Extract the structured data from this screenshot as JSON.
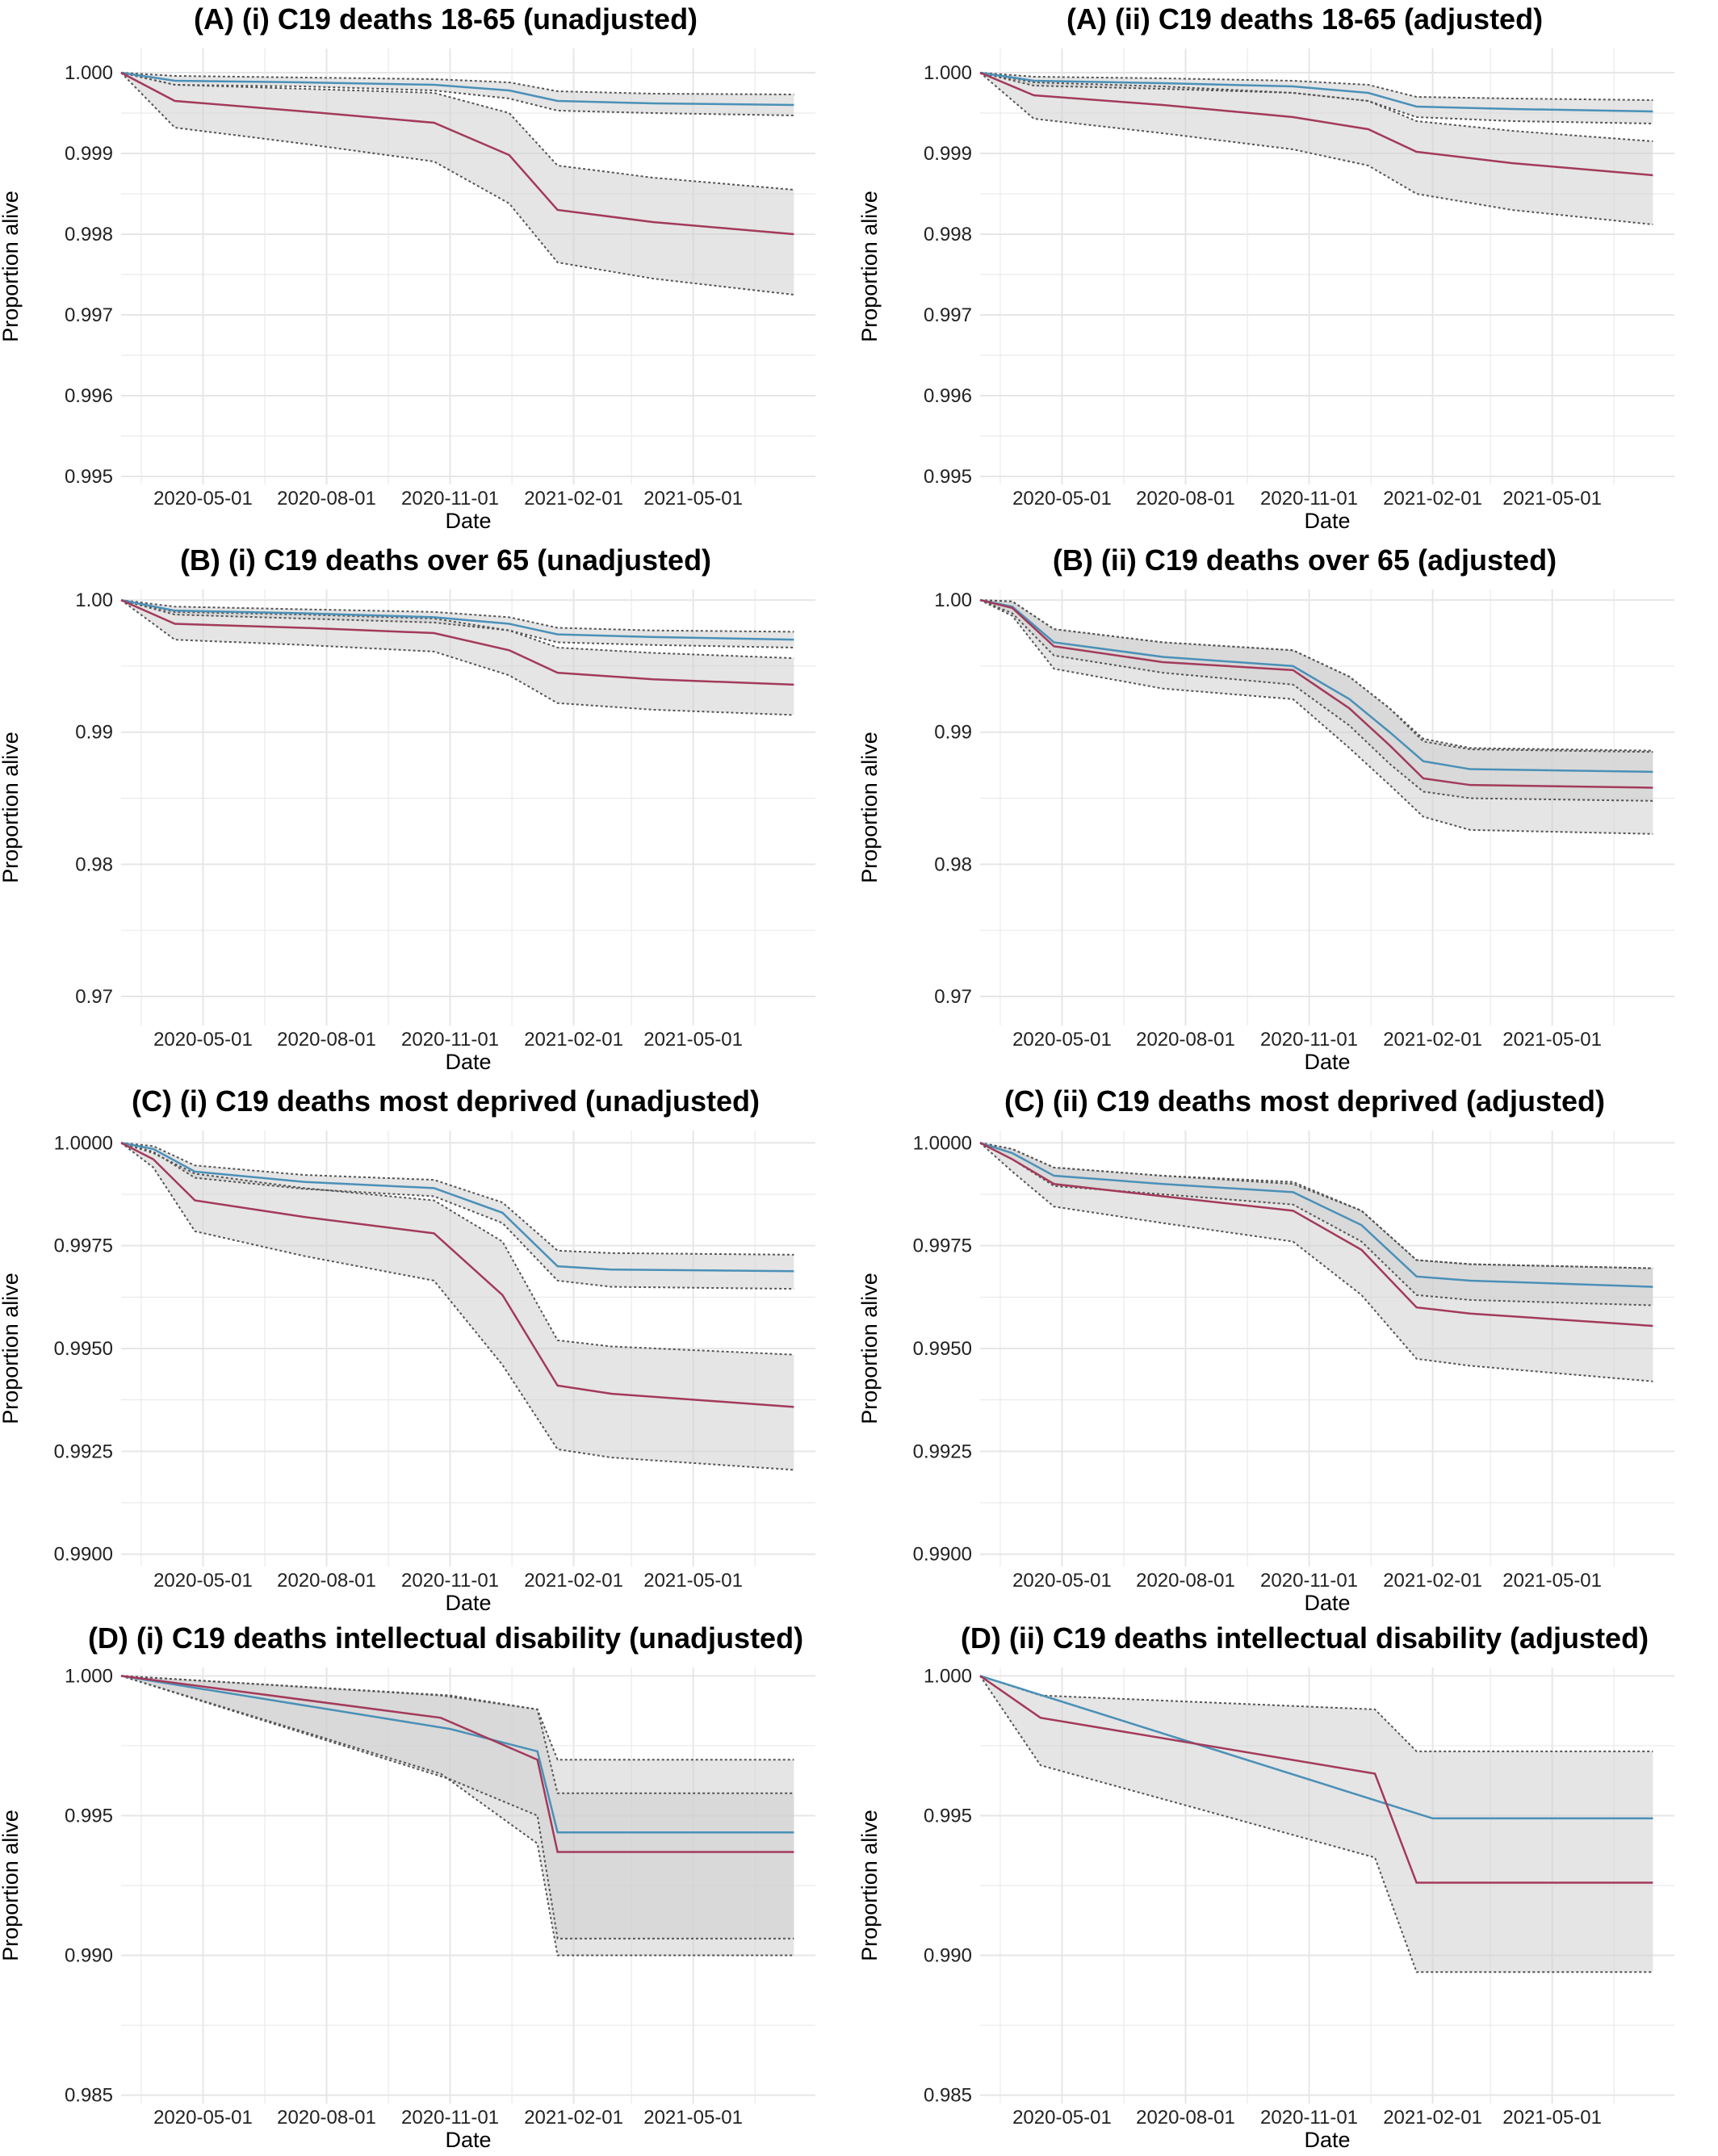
{
  "figure": {
    "panels_count": 8,
    "colors": {
      "series_blue": "#4a90b8",
      "series_red": "#a33a5a",
      "ci_fill": "#cfcfcf",
      "grid": "#e6e6e6",
      "ci_border": "#555555"
    }
  },
  "chart_data": [
    {
      "id": "A-i",
      "type": "line",
      "title": "(A)  (i) C19 deaths 18-65 (unadjusted)",
      "xlabel": "Date",
      "ylabel": "Proportion alive",
      "xlim": [
        "2020-03-01",
        "2021-07-31"
      ],
      "ylim": [
        0.9949,
        1.0003
      ],
      "xticks": [
        "2020-05-01",
        "2020-08-01",
        "2020-11-01",
        "2021-02-01",
        "2021-05-01"
      ],
      "yticks": [
        0.995,
        0.996,
        0.997,
        0.998,
        0.999,
        1.0
      ],
      "ytick_labels": [
        "0.995",
        "0.996",
        "0.997",
        "0.998",
        "0.999",
        "1.000"
      ],
      "grid": true,
      "series": [
        {
          "color": "blue",
          "x": [
            "2020-03-01",
            "2020-04-10",
            "2020-07-15",
            "2020-10-20",
            "2020-12-15",
            "2021-01-20",
            "2021-04-01",
            "2021-07-15"
          ],
          "values": [
            1.0,
            0.9999,
            0.99988,
            0.99985,
            0.99978,
            0.99965,
            0.99962,
            0.9996
          ],
          "lower": [
            1.0,
            0.99985,
            0.99983,
            0.99978,
            0.99968,
            0.99953,
            0.9995,
            0.99947
          ],
          "upper": [
            1.0,
            0.99996,
            0.99994,
            0.99992,
            0.99988,
            0.99977,
            0.99974,
            0.99973
          ]
        },
        {
          "color": "red",
          "x": [
            "2020-03-01",
            "2020-04-10",
            "2020-07-15",
            "2020-10-20",
            "2020-12-15",
            "2021-01-20",
            "2021-04-01",
            "2021-07-15"
          ],
          "values": [
            1.0,
            0.99965,
            0.99952,
            0.99938,
            0.99898,
            0.9983,
            0.99815,
            0.998
          ],
          "lower": [
            1.0,
            0.99932,
            0.99912,
            0.9989,
            0.99838,
            0.99765,
            0.99745,
            0.99725
          ],
          "upper": [
            1.0,
            0.99985,
            0.9998,
            0.99975,
            0.9995,
            0.99885,
            0.9987,
            0.99855
          ]
        }
      ]
    },
    {
      "id": "A-ii",
      "type": "line",
      "title": "(A)  (ii) C19 deaths 18-65 (adjusted)",
      "xlabel": "Date",
      "ylabel": "Proportion alive",
      "xlim": [
        "2020-03-01",
        "2021-07-31"
      ],
      "ylim": [
        0.9949,
        1.0003
      ],
      "xticks": [
        "2020-05-01",
        "2020-08-01",
        "2020-11-01",
        "2021-02-01",
        "2021-05-01"
      ],
      "yticks": [
        0.995,
        0.996,
        0.997,
        0.998,
        0.999,
        1.0
      ],
      "ytick_labels": [
        "0.995",
        "0.996",
        "0.997",
        "0.998",
        "0.999",
        "1.000"
      ],
      "grid": true,
      "series": [
        {
          "color": "blue",
          "x": [
            "2020-03-01",
            "2020-04-10",
            "2020-07-15",
            "2020-10-20",
            "2020-12-15",
            "2021-01-20",
            "2021-04-01",
            "2021-07-15"
          ],
          "values": [
            1.0,
            0.9999,
            0.99987,
            0.99983,
            0.99975,
            0.99958,
            0.99955,
            0.99952
          ],
          "lower": [
            1.0,
            0.99984,
            0.9998,
            0.99975,
            0.99965,
            0.99945,
            0.9994,
            0.99937
          ],
          "upper": [
            1.0,
            0.99995,
            0.99993,
            0.9999,
            0.99985,
            0.9997,
            0.99968,
            0.99966
          ]
        },
        {
          "color": "red",
          "x": [
            "2020-03-01",
            "2020-04-10",
            "2020-07-15",
            "2020-10-20",
            "2020-12-15",
            "2021-01-20",
            "2021-04-01",
            "2021-07-15"
          ],
          "values": [
            1.0,
            0.99972,
            0.9996,
            0.99945,
            0.9993,
            0.99902,
            0.99888,
            0.99873
          ],
          "lower": [
            1.0,
            0.99943,
            0.99925,
            0.99905,
            0.99885,
            0.9985,
            0.9983,
            0.99812
          ],
          "upper": [
            1.0,
            0.99988,
            0.99983,
            0.99975,
            0.99965,
            0.9994,
            0.99928,
            0.99915
          ]
        }
      ]
    },
    {
      "id": "B-i",
      "type": "line",
      "title": "(B)  (i) C19 deaths over 65 (unadjusted)",
      "xlabel": "Date",
      "ylabel": "Proportion alive",
      "xlim": [
        "2020-03-01",
        "2021-07-31"
      ],
      "ylim": [
        0.9678,
        1.0008
      ],
      "xticks": [
        "2020-05-01",
        "2020-08-01",
        "2020-11-01",
        "2021-02-01",
        "2021-05-01"
      ],
      "yticks": [
        0.97,
        0.98,
        0.99,
        1.0
      ],
      "ytick_labels": [
        "0.97",
        "0.98",
        "0.99",
        "1.00"
      ],
      "grid": true,
      "series": [
        {
          "color": "blue",
          "x": [
            "2020-03-01",
            "2020-04-10",
            "2020-07-15",
            "2020-10-20",
            "2020-12-15",
            "2021-01-20",
            "2021-04-01",
            "2021-07-15"
          ],
          "values": [
            1.0,
            0.9992,
            0.999,
            0.9987,
            0.9982,
            0.9974,
            0.9972,
            0.997
          ],
          "lower": [
            1.0,
            0.9989,
            0.9986,
            0.9983,
            0.9977,
            0.9968,
            0.9966,
            0.9964
          ],
          "upper": [
            1.0,
            0.9995,
            0.9993,
            0.9991,
            0.9987,
            0.9979,
            0.9977,
            0.9976
          ]
        },
        {
          "color": "red",
          "x": [
            "2020-03-01",
            "2020-04-10",
            "2020-07-15",
            "2020-10-20",
            "2020-12-15",
            "2021-01-20",
            "2021-04-01",
            "2021-07-15"
          ],
          "values": [
            1.0,
            0.9982,
            0.9979,
            0.9975,
            0.9962,
            0.9945,
            0.994,
            0.9936
          ],
          "lower": [
            1.0,
            0.997,
            0.9966,
            0.9961,
            0.9943,
            0.9922,
            0.9917,
            0.9913
          ],
          "upper": [
            1.0,
            0.9991,
            0.9989,
            0.9986,
            0.9977,
            0.9964,
            0.996,
            0.9956
          ]
        }
      ]
    },
    {
      "id": "B-ii",
      "type": "line",
      "title": "(B)  (ii) C19 deaths over 65 (adjusted)",
      "xlabel": "Date",
      "ylabel": "Proportion alive",
      "xlim": [
        "2020-03-01",
        "2021-07-31"
      ],
      "ylim": [
        0.9678,
        1.0008
      ],
      "xticks": [
        "2020-05-01",
        "2020-08-01",
        "2020-11-01",
        "2021-02-01",
        "2021-05-01"
      ],
      "yticks": [
        0.97,
        0.98,
        0.99,
        1.0
      ],
      "ytick_labels": [
        "0.97",
        "0.98",
        "0.99",
        "1.00"
      ],
      "grid": true,
      "series": [
        {
          "color": "blue",
          "x": [
            "2020-03-01",
            "2020-03-25",
            "2020-04-25",
            "2020-07-15",
            "2020-10-20",
            "2020-12-01",
            "2020-12-31",
            "2021-01-25",
            "2021-03-01",
            "2021-07-15"
          ],
          "values": [
            1.0,
            0.9995,
            0.9968,
            0.9957,
            0.995,
            0.9925,
            0.99,
            0.9878,
            0.9872,
            0.987
          ],
          "lower": [
            1.0,
            0.999,
            0.9958,
            0.9945,
            0.9936,
            0.9905,
            0.9876,
            0.9855,
            0.985,
            0.9848
          ],
          "upper": [
            1.0,
            0.9999,
            0.9978,
            0.9968,
            0.9962,
            0.9942,
            0.9918,
            0.9895,
            0.9888,
            0.9886
          ]
        },
        {
          "color": "red",
          "x": [
            "2020-03-01",
            "2020-03-25",
            "2020-04-25",
            "2020-07-15",
            "2020-10-20",
            "2020-12-01",
            "2020-12-31",
            "2021-01-25",
            "2021-03-01",
            "2021-07-15"
          ],
          "values": [
            1.0,
            0.9994,
            0.9965,
            0.9953,
            0.9947,
            0.9918,
            0.989,
            0.9865,
            0.986,
            0.9858
          ],
          "lower": [
            1.0,
            0.9988,
            0.9948,
            0.9933,
            0.9925,
            0.9888,
            0.986,
            0.9836,
            0.9826,
            0.9823
          ],
          "upper": [
            1.0,
            0.9999,
            0.9978,
            0.9968,
            0.9962,
            0.9942,
            0.9918,
            0.9893,
            0.9887,
            0.9885
          ]
        }
      ]
    },
    {
      "id": "C-i",
      "type": "line",
      "title": "(C)  (i) C19 deaths most deprived (unadjusted)",
      "xlabel": "Date",
      "ylabel": "Proportion alive",
      "xlim": [
        "2020-03-01",
        "2021-07-31"
      ],
      "ylim": [
        0.9897,
        1.0003
      ],
      "xticks": [
        "2020-05-01",
        "2020-08-01",
        "2020-11-01",
        "2021-02-01",
        "2021-05-01"
      ],
      "yticks": [
        0.99,
        0.9925,
        0.995,
        0.9975,
        1.0
      ],
      "ytick_labels": [
        "0.9900",
        "0.9925",
        "0.9950",
        "0.9975",
        "1.0000"
      ],
      "grid": true,
      "series": [
        {
          "color": "blue",
          "x": [
            "2020-03-01",
            "2020-03-25",
            "2020-04-25",
            "2020-07-15",
            "2020-10-20",
            "2020-12-10",
            "2021-01-20",
            "2021-03-01",
            "2021-07-15"
          ],
          "values": [
            1.0,
            0.99985,
            0.9993,
            0.99905,
            0.9989,
            0.9983,
            0.997,
            0.99692,
            0.99688
          ],
          "lower": [
            1.0,
            0.99978,
            0.99915,
            0.99888,
            0.9987,
            0.99805,
            0.99665,
            0.9965,
            0.99645
          ],
          "upper": [
            1.0,
            0.99992,
            0.99945,
            0.99922,
            0.9991,
            0.99855,
            0.99738,
            0.99732,
            0.99728
          ]
        },
        {
          "color": "red",
          "x": [
            "2020-03-01",
            "2020-03-25",
            "2020-04-25",
            "2020-07-15",
            "2020-10-20",
            "2020-12-10",
            "2021-01-20",
            "2021-03-01",
            "2021-07-15"
          ],
          "values": [
            1.0,
            0.9996,
            0.9986,
            0.9982,
            0.9978,
            0.9963,
            0.9941,
            0.9939,
            0.99358
          ],
          "lower": [
            1.0,
            0.9994,
            0.99785,
            0.99725,
            0.99665,
            0.9946,
            0.99255,
            0.99235,
            0.99205
          ],
          "upper": [
            1.0,
            0.99975,
            0.99925,
            0.9989,
            0.9986,
            0.9976,
            0.9952,
            0.99505,
            0.99485
          ]
        }
      ]
    },
    {
      "id": "C-ii",
      "type": "line",
      "title": "(C)  (ii)        C19 deaths most deprived (adjusted)",
      "xlabel": "Date",
      "ylabel": "Proportion alive",
      "xlim": [
        "2020-03-01",
        "2021-07-31"
      ],
      "ylim": [
        0.9897,
        1.0003
      ],
      "xticks": [
        "2020-05-01",
        "2020-08-01",
        "2020-11-01",
        "2021-02-01",
        "2021-05-01"
      ],
      "yticks": [
        0.99,
        0.9925,
        0.995,
        0.9975,
        1.0
      ],
      "ytick_labels": [
        "0.9900",
        "0.9925",
        "0.9950",
        "0.9975",
        "1.0000"
      ],
      "grid": true,
      "series": [
        {
          "color": "blue",
          "x": [
            "2020-03-01",
            "2020-03-25",
            "2020-04-25",
            "2020-07-15",
            "2020-10-20",
            "2020-12-10",
            "2021-01-20",
            "2021-03-01",
            "2021-07-15"
          ],
          "values": [
            1.0,
            0.99975,
            0.9992,
            0.999,
            0.9988,
            0.998,
            0.99675,
            0.99665,
            0.9965
          ],
          "lower": [
            1.0,
            0.9996,
            0.99895,
            0.99875,
            0.9985,
            0.9976,
            0.9963,
            0.99618,
            0.99605
          ],
          "upper": [
            1.0,
            0.99985,
            0.9994,
            0.9992,
            0.99905,
            0.99835,
            0.99715,
            0.99705,
            0.99695
          ]
        },
        {
          "color": "red",
          "x": [
            "2020-03-01",
            "2020-03-25",
            "2020-04-25",
            "2020-07-15",
            "2020-10-20",
            "2020-12-10",
            "2021-01-20",
            "2021-03-01",
            "2021-07-15"
          ],
          "values": [
            1.0,
            0.9996,
            0.999,
            0.9987,
            0.99835,
            0.9974,
            0.996,
            0.99585,
            0.99555
          ],
          "lower": [
            1.0,
            0.9993,
            0.99845,
            0.99805,
            0.9976,
            0.9963,
            0.99475,
            0.99458,
            0.9942
          ],
          "upper": [
            1.0,
            0.99985,
            0.9994,
            0.9992,
            0.999,
            0.99835,
            0.99715,
            0.99705,
            0.99695
          ]
        }
      ]
    },
    {
      "id": "D-i",
      "type": "line",
      "title": "(D)  (i) C19 deaths intellectual disability (unadjusted)",
      "xlabel": "Date",
      "ylabel": "Proportion alive",
      "xlim": [
        "2020-03-01",
        "2021-07-31"
      ],
      "ylim": [
        0.9847,
        1.0003
      ],
      "xticks": [
        "2020-05-01",
        "2020-08-01",
        "2020-11-01",
        "2021-02-01",
        "2021-05-01"
      ],
      "yticks": [
        0.985,
        0.99,
        0.995,
        1.0
      ],
      "ytick_labels": [
        "0.985",
        "0.990",
        "0.995",
        "1.000"
      ],
      "grid": true,
      "series": [
        {
          "color": "blue",
          "x": [
            "2020-03-01",
            "2020-11-01",
            "2021-01-05",
            "2021-01-20",
            "2021-07-15"
          ],
          "values": [
            1.0,
            0.9981,
            0.9973,
            0.9944,
            0.9944
          ],
          "lower": [
            1.0,
            0.9963,
            0.995,
            0.9906,
            0.9906
          ],
          "upper": [
            1.0,
            0.9993,
            0.9988,
            0.997,
            0.997
          ]
        },
        {
          "color": "red",
          "x": [
            "2020-03-01",
            "2020-10-25",
            "2021-01-05",
            "2021-01-20",
            "2021-07-15"
          ],
          "values": [
            1.0,
            0.9985,
            0.997,
            0.9937,
            0.9937
          ],
          "lower": [
            1.0,
            0.9965,
            0.994,
            0.99,
            0.99
          ],
          "upper": [
            1.0,
            0.9993,
            0.9988,
            0.9958,
            0.9958
          ]
        }
      ]
    },
    {
      "id": "D-ii",
      "type": "line",
      "title": "(D)  (ii) C19 deaths intellectual disability (adjusted)",
      "xlabel": "Date",
      "ylabel": "Proportion alive",
      "xlim": [
        "2020-03-01",
        "2021-07-31"
      ],
      "ylim": [
        0.9847,
        1.0003
      ],
      "xticks": [
        "2020-05-01",
        "2020-08-01",
        "2020-11-01",
        "2021-02-01",
        "2021-05-01"
      ],
      "yticks": [
        0.985,
        0.99,
        0.995,
        1.0
      ],
      "ytick_labels": [
        "0.985",
        "0.990",
        "0.995",
        "1.000"
      ],
      "grid": true,
      "series": [
        {
          "color": "blue",
          "x": [
            "2020-03-01",
            "2021-02-01",
            "2021-07-15"
          ],
          "values": [
            1.0,
            0.9949,
            0.9949
          ],
          "lower": [
            1.0,
            0.9949,
            0.9949
          ],
          "upper": [
            1.0,
            0.9949,
            0.9949
          ]
        },
        {
          "color": "red",
          "x": [
            "2020-03-01",
            "2020-04-15",
            "2020-12-20",
            "2021-01-20",
            "2021-07-15"
          ],
          "values": [
            1.0,
            0.9985,
            0.9965,
            0.9926,
            0.9926
          ],
          "lower": [
            1.0,
            0.9968,
            0.9935,
            0.9894,
            0.9894
          ],
          "upper": [
            1.0,
            0.9993,
            0.9988,
            0.9973,
            0.9973
          ]
        }
      ]
    }
  ]
}
